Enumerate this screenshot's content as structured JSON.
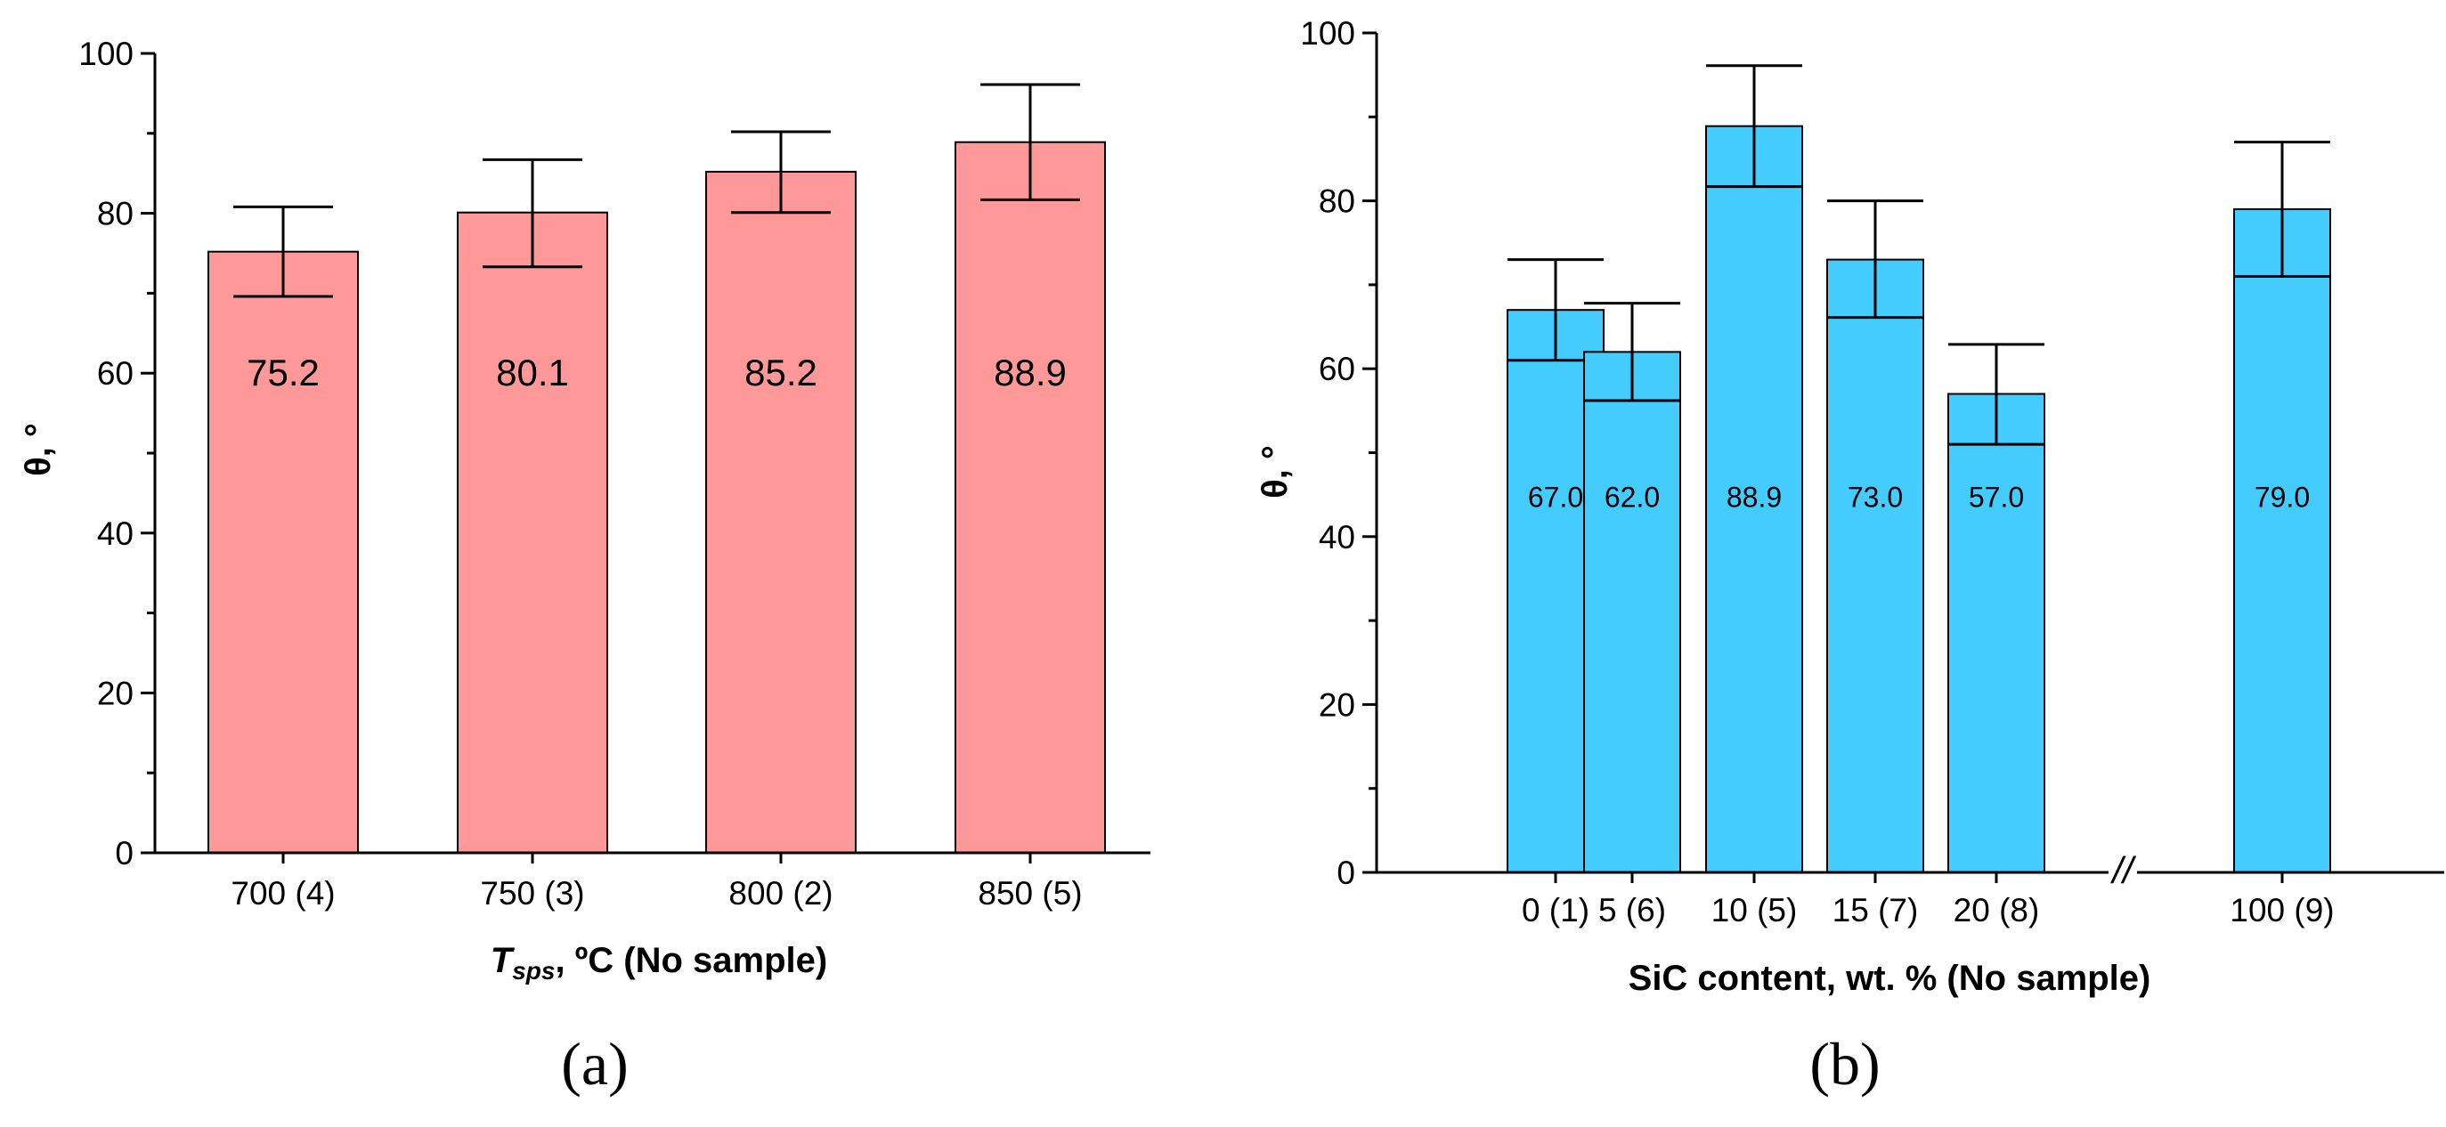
{
  "chart_data": [
    {
      "type": "bar",
      "panel_label": "(a)",
      "categories": [
        "700 (4)",
        "750 (3)",
        "800 (2)",
        "850 (5)"
      ],
      "values": [
        75.2,
        80.1,
        85.2,
        88.9
      ],
      "value_labels": [
        "75.2",
        "80.1",
        "85.2",
        "88.9"
      ],
      "error_upper": [
        80.8,
        86.7,
        90.2,
        96.1
      ],
      "error_lower": [
        69.6,
        73.3,
        80.1,
        81.7
      ],
      "ylabel": "θ, °",
      "xlabel_main": "T",
      "xlabel_sub": "sps",
      "xlabel_rest": ", ºC (No sample)",
      "ylim": [
        0,
        100
      ],
      "yticks": [
        0,
        20,
        40,
        60,
        80,
        100
      ],
      "bar_color": "#FF9999",
      "grid": false
    },
    {
      "type": "bar",
      "panel_label": "(b)",
      "categories": [
        "0 (1)",
        "5 (6)",
        "10 (5)",
        "15 (7)",
        "20 (8)",
        "100 (9)"
      ],
      "values": [
        67.0,
        62.0,
        88.9,
        73.0,
        57.0,
        79.0
      ],
      "value_labels": [
        "67.0",
        "62.0",
        "88.9",
        "73.0",
        "57.0",
        "79.0"
      ],
      "error_upper": [
        73.0,
        67.8,
        96.1,
        80.0,
        62.9,
        87.0
      ],
      "error_lower": [
        61.0,
        56.2,
        81.7,
        66.1,
        51.0,
        71.0
      ],
      "ylabel": "θ, °",
      "xlabel": "SiC content, wt. % (No sample)",
      "axis_break": "//",
      "ylim": [
        0,
        100
      ],
      "yticks": [
        0,
        20,
        40,
        60,
        80,
        100
      ],
      "bar_color": "#44CCFF",
      "grid": false
    }
  ]
}
